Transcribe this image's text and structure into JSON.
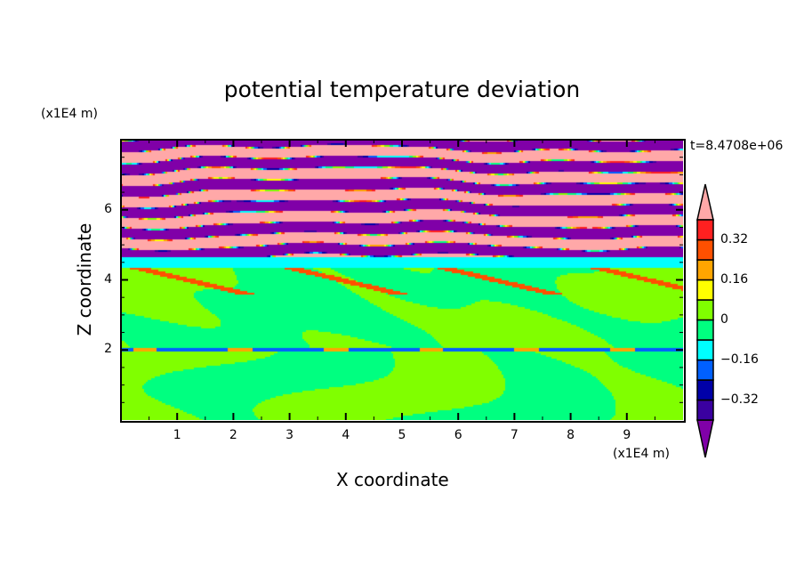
{
  "chart_data": {
    "type": "heatmap",
    "title": "potential temperature deviation",
    "xlabel": "X coordinate",
    "ylabel": "Z coordinate",
    "x_unit_label": "(x1E4 m)",
    "y_unit_label": "(x1E4 m)",
    "time_label": "t=8.4708e+06",
    "xlim": [
      0,
      10
    ],
    "ylim": [
      0,
      8
    ],
    "x_ticks": [
      "1",
      "2",
      "3",
      "4",
      "5",
      "6",
      "7",
      "8",
      "9"
    ],
    "y_ticks": [
      "2",
      "4",
      "6"
    ],
    "colorbar": {
      "levels": [
        -0.4,
        -0.32,
        -0.24,
        -0.16,
        -0.08,
        0,
        0.08,
        0.16,
        0.24,
        0.32,
        0.4
      ],
      "tick_labels": [
        "0.32",
        "0.16",
        "0",
        "−0.16",
        "−0.32"
      ],
      "tick_values": [
        0.32,
        0.16,
        0,
        -0.16,
        -0.32
      ],
      "colors": [
        "#3a00a0",
        "#0000a8",
        "#0060ff",
        "#00ffff",
        "#00ff80",
        "#80ff00",
        "#ffff00",
        "#ffa500",
        "#ff5000",
        "#ff2020"
      ],
      "over_color": "#ffa8a8",
      "under_color": "#8000a8",
      "extend": "both"
    },
    "field_description_regions": {
      "upper_layer_z_range": [
        4.6,
        8
      ],
      "upper_layer_values": "alternating >0.4 and <-0.4 bands",
      "inversion_z": 4.5,
      "lower_layer_values": "0 to 0.08 and -0.08 to 0",
      "interface_z": 2
    }
  }
}
